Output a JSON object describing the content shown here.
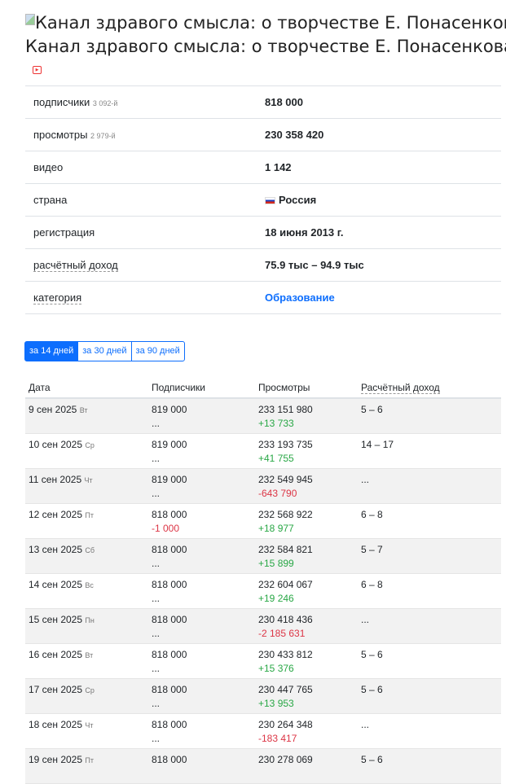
{
  "channel": {
    "title": "Канал здравого смысла: о творчестве Е. Понасенкова",
    "image_alt": "Канал здравого смысла: о творчестве Е. Понасенкова"
  },
  "info": [
    {
      "label": "подписчики",
      "rank": "3 092-й",
      "value": "818 000"
    },
    {
      "label": "просмотры",
      "rank": "2 979-й",
      "value": "230 358 420"
    },
    {
      "label": "видео",
      "value": "1 142"
    },
    {
      "label": "страна",
      "value": "Россия"
    },
    {
      "label": "регистрация",
      "value": "18 июня 2013 г."
    },
    {
      "label": "расчётный доход",
      "value": "75.9 тыс – 94.9 тыс"
    },
    {
      "label": "категория",
      "value": "Образование"
    }
  ],
  "periods": [
    "за 14 дней",
    "за 30 дней",
    "за 90 дней"
  ],
  "table": {
    "headers": [
      "Дата",
      "Подписчики",
      "Просмотры",
      "Расчётный доход"
    ],
    "rows": [
      {
        "date": "9 сен 2025",
        "dow": "Вт",
        "subs": "819 000",
        "subs_delta": "...",
        "views": "233 151 980",
        "views_delta": "+13 733",
        "income": "5 – 6"
      },
      {
        "date": "10 сен 2025",
        "dow": "Ср",
        "subs": "819 000",
        "subs_delta": "...",
        "views": "233 193 735",
        "views_delta": "+41 755",
        "income": "14 – 17"
      },
      {
        "date": "11 сен 2025",
        "dow": "Чт",
        "subs": "819 000",
        "subs_delta": "...",
        "views": "232 549 945",
        "views_delta": "-643 790",
        "income": "..."
      },
      {
        "date": "12 сен 2025",
        "dow": "Пт",
        "subs": "818 000",
        "subs_delta": "-1 000",
        "views": "232 568 922",
        "views_delta": "+18 977",
        "income": "6 – 8"
      },
      {
        "date": "13 сен 2025",
        "dow": "Сб",
        "subs": "818 000",
        "subs_delta": "...",
        "views": "232 584 821",
        "views_delta": "+15 899",
        "income": "5 – 7"
      },
      {
        "date": "14 сен 2025",
        "dow": "Вс",
        "subs": "818 000",
        "subs_delta": "...",
        "views": "232 604 067",
        "views_delta": "+19 246",
        "income": "6 – 8"
      },
      {
        "date": "15 сен 2025",
        "dow": "Пн",
        "subs": "818 000",
        "subs_delta": "...",
        "views": "230 418 436",
        "views_delta": "-2 185 631",
        "income": "..."
      },
      {
        "date": "16 сен 2025",
        "dow": "Вт",
        "subs": "818 000",
        "subs_delta": "...",
        "views": "230 433 812",
        "views_delta": "+15 376",
        "income": "5 – 6"
      },
      {
        "date": "17 сен 2025",
        "dow": "Ср",
        "subs": "818 000",
        "subs_delta": "...",
        "views": "230 447 765",
        "views_delta": "+13 953",
        "income": "5 – 6"
      },
      {
        "date": "18 сен 2025",
        "dow": "Чт",
        "subs": "818 000",
        "subs_delta": "...",
        "views": "230 264 348",
        "views_delta": "-183 417",
        "income": "..."
      },
      {
        "date": "19 сен 2025",
        "dow": "Пт",
        "subs": "818 000",
        "subs_delta": "",
        "views": "230 278 069",
        "views_delta": "",
        "income": "5 – 6"
      }
    ]
  },
  "colors": {
    "accent": "#0d6efd",
    "positive": "#28a745",
    "negative": "#dc3545"
  }
}
